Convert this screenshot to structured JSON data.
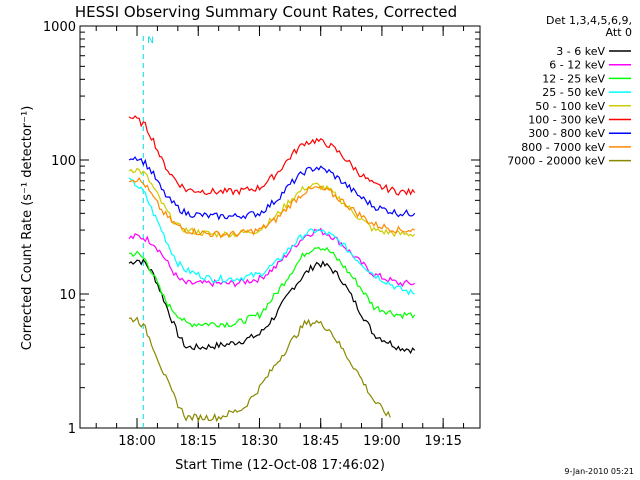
{
  "chart_data": {
    "type": "line",
    "title": "HESSI Observing Summary Count Rates, Corrected",
    "xlabel": "Start Time (12-Oct-08 17:46:02)",
    "ylabel": "Corrected Count Rate (s⁻¹ detector⁻¹)",
    "yscale": "log",
    "ylim": [
      1,
      1000
    ],
    "xlim_minutes": [
      0,
      98
    ],
    "x_ticks": [
      {
        "label": "18:00",
        "minute": 13.97
      },
      {
        "label": "18:15",
        "minute": 28.97
      },
      {
        "label": "18:30",
        "minute": 43.97
      },
      {
        "label": "18:45",
        "minute": 58.97
      },
      {
        "label": "19:00",
        "minute": 73.97
      },
      {
        "label": "19:15",
        "minute": 88.97
      }
    ],
    "y_ticks": [
      {
        "label": "1",
        "value": 1
      },
      {
        "label": "10",
        "value": 10
      },
      {
        "label": "100",
        "value": 100
      },
      {
        "label": "1000",
        "value": 1000
      }
    ],
    "legend_header": [
      "Det 1,3,4,5,6,9,",
      "Att 0"
    ],
    "legend_position": "right",
    "series": [
      {
        "name": "3 - 6 keV",
        "color": "#000000",
        "points": [
          [
            12,
            17
          ],
          [
            14,
            18
          ],
          [
            16,
            17
          ],
          [
            18,
            14
          ],
          [
            20,
            10
          ],
          [
            22,
            7
          ],
          [
            24,
            5
          ],
          [
            26,
            4
          ],
          [
            30,
            4
          ],
          [
            36,
            4.2
          ],
          [
            40,
            4.5
          ],
          [
            44,
            5
          ],
          [
            48,
            7
          ],
          [
            52,
            11
          ],
          [
            55,
            14
          ],
          [
            58,
            17
          ],
          [
            61,
            16
          ],
          [
            64,
            13
          ],
          [
            68,
            8
          ],
          [
            72,
            5
          ],
          [
            78,
            4
          ],
          [
            82,
            3.8
          ]
        ]
      },
      {
        "name": "6 - 12 keV",
        "color": "#ff00ff",
        "points": [
          [
            12,
            26
          ],
          [
            14,
            27
          ],
          [
            16,
            26
          ],
          [
            18,
            24
          ],
          [
            20,
            20
          ],
          [
            22,
            16
          ],
          [
            24,
            13
          ],
          [
            26,
            12
          ],
          [
            32,
            12
          ],
          [
            38,
            12
          ],
          [
            44,
            13
          ],
          [
            48,
            16
          ],
          [
            52,
            22
          ],
          [
            55,
            27
          ],
          [
            58,
            30
          ],
          [
            61,
            28
          ],
          [
            64,
            24
          ],
          [
            68,
            18
          ],
          [
            72,
            14
          ],
          [
            78,
            12
          ],
          [
            82,
            12
          ]
        ]
      },
      {
        "name": "12 - 25 keV",
        "color": "#00ff00",
        "points": [
          [
            12,
            20
          ],
          [
            14,
            20
          ],
          [
            16,
            18
          ],
          [
            18,
            14
          ],
          [
            20,
            10
          ],
          [
            22,
            8
          ],
          [
            24,
            7
          ],
          [
            26,
            6
          ],
          [
            32,
            6
          ],
          [
            38,
            6
          ],
          [
            44,
            7
          ],
          [
            48,
            10
          ],
          [
            52,
            15
          ],
          [
            55,
            20
          ],
          [
            58,
            23
          ],
          [
            61,
            21
          ],
          [
            64,
            17
          ],
          [
            68,
            12
          ],
          [
            72,
            8
          ],
          [
            78,
            7
          ],
          [
            82,
            7
          ]
        ]
      },
      {
        "name": "25 - 50 keV",
        "color": "#00ffff",
        "points": [
          [
            12,
            70
          ],
          [
            14,
            65
          ],
          [
            16,
            55
          ],
          [
            18,
            40
          ],
          [
            20,
            30
          ],
          [
            22,
            22
          ],
          [
            24,
            17
          ],
          [
            26,
            15
          ],
          [
            32,
            13
          ],
          [
            38,
            13
          ],
          [
            44,
            14
          ],
          [
            48,
            17
          ],
          [
            52,
            23
          ],
          [
            55,
            28
          ],
          [
            58,
            30
          ],
          [
            61,
            28
          ],
          [
            64,
            24
          ],
          [
            68,
            18
          ],
          [
            72,
            14
          ],
          [
            78,
            11
          ],
          [
            82,
            10
          ]
        ]
      },
      {
        "name": "50 - 100 keV",
        "color": "#cccc00",
        "points": [
          [
            12,
            85
          ],
          [
            14,
            85
          ],
          [
            16,
            78
          ],
          [
            18,
            62
          ],
          [
            20,
            48
          ],
          [
            22,
            38
          ],
          [
            24,
            32
          ],
          [
            26,
            30
          ],
          [
            32,
            28
          ],
          [
            38,
            28
          ],
          [
            44,
            30
          ],
          [
            48,
            38
          ],
          [
            52,
            52
          ],
          [
            55,
            62
          ],
          [
            58,
            65
          ],
          [
            61,
            60
          ],
          [
            64,
            50
          ],
          [
            68,
            38
          ],
          [
            72,
            30
          ],
          [
            78,
            28
          ],
          [
            82,
            28
          ]
        ]
      },
      {
        "name": "100 - 300 keV",
        "color": "#ff0000",
        "points": [
          [
            12,
            210
          ],
          [
            14,
            200
          ],
          [
            16,
            180
          ],
          [
            18,
            140
          ],
          [
            20,
            100
          ],
          [
            22,
            80
          ],
          [
            24,
            68
          ],
          [
            26,
            60
          ],
          [
            32,
            58
          ],
          [
            38,
            58
          ],
          [
            44,
            62
          ],
          [
            48,
            78
          ],
          [
            52,
            110
          ],
          [
            55,
            135
          ],
          [
            58,
            140
          ],
          [
            61,
            130
          ],
          [
            64,
            110
          ],
          [
            68,
            82
          ],
          [
            72,
            65
          ],
          [
            78,
            58
          ],
          [
            82,
            57
          ]
        ]
      },
      {
        "name": "300 - 800 keV",
        "color": "#0000ff",
        "points": [
          [
            12,
            105
          ],
          [
            14,
            105
          ],
          [
            16,
            95
          ],
          [
            18,
            78
          ],
          [
            20,
            60
          ],
          [
            22,
            50
          ],
          [
            24,
            44
          ],
          [
            26,
            40
          ],
          [
            32,
            38
          ],
          [
            38,
            38
          ],
          [
            44,
            40
          ],
          [
            48,
            50
          ],
          [
            52,
            68
          ],
          [
            55,
            82
          ],
          [
            58,
            88
          ],
          [
            61,
            82
          ],
          [
            64,
            70
          ],
          [
            68,
            55
          ],
          [
            72,
            45
          ],
          [
            78,
            40
          ],
          [
            82,
            40
          ]
        ]
      },
      {
        "name": "800 - 7000 keV",
        "color": "#ff8800",
        "points": [
          [
            12,
            72
          ],
          [
            14,
            72
          ],
          [
            16,
            65
          ],
          [
            18,
            52
          ],
          [
            20,
            42
          ],
          [
            22,
            36
          ],
          [
            24,
            32
          ],
          [
            26,
            30
          ],
          [
            32,
            28
          ],
          [
            38,
            28
          ],
          [
            44,
            30
          ],
          [
            48,
            36
          ],
          [
            52,
            48
          ],
          [
            55,
            58
          ],
          [
            58,
            62
          ],
          [
            61,
            58
          ],
          [
            64,
            50
          ],
          [
            68,
            40
          ],
          [
            72,
            33
          ],
          [
            78,
            30
          ],
          [
            82,
            30
          ]
        ]
      },
      {
        "name": "7000 - 20000 keV",
        "color": "#888800",
        "points": [
          [
            12,
            6.5
          ],
          [
            14,
            6.5
          ],
          [
            16,
            5.5
          ],
          [
            18,
            4
          ],
          [
            20,
            2.8
          ],
          [
            22,
            2
          ],
          [
            24,
            1.5
          ],
          [
            26,
            1.2
          ],
          [
            34,
            1.2
          ],
          [
            40,
            1.4
          ],
          [
            44,
            2
          ],
          [
            48,
            3
          ],
          [
            52,
            4.5
          ],
          [
            55,
            6
          ],
          [
            58,
            6.2
          ],
          [
            61,
            5.5
          ],
          [
            64,
            4
          ],
          [
            68,
            2.6
          ],
          [
            72,
            1.6
          ],
          [
            76,
            1.2
          ]
        ]
      }
    ],
    "markers": [
      {
        "label": "N",
        "minute": 15.5
      }
    ],
    "footer_timestamp": "9-Jan-2010 05:21"
  }
}
